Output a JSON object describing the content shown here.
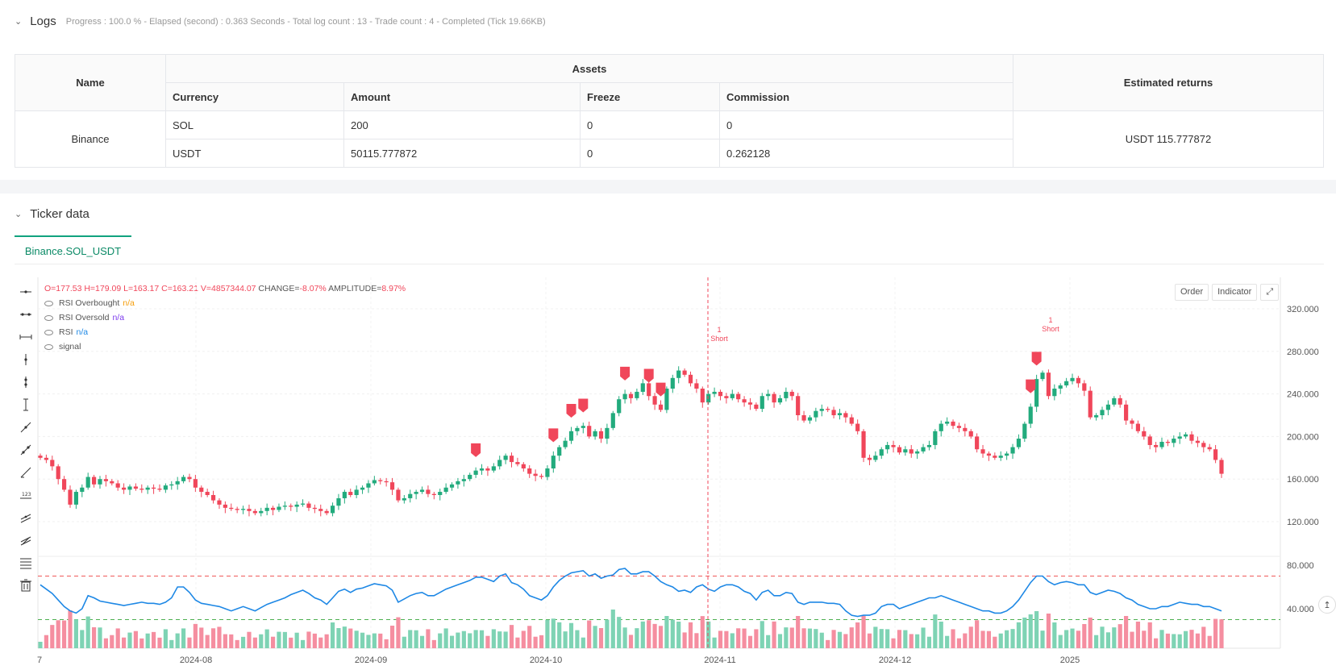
{
  "logs": {
    "title": "Logs",
    "meta": "Progress : 100.0 % - Elapsed (second) : 0.363  Seconds - Total log count : 13 - Trade count : 4 - Completed (Tick 19.66KB)"
  },
  "assets_table": {
    "name_header": "Name",
    "assets_header": "Assets",
    "returns_header": "Estimated returns",
    "columns": [
      "Currency",
      "Amount",
      "Freeze",
      "Commission"
    ],
    "exchange": "Binance",
    "rows": [
      {
        "currency": "SOL",
        "amount": "200",
        "freeze": "0",
        "commission": "0"
      },
      {
        "currency": "USDT",
        "amount": "50115.777872",
        "freeze": "0",
        "commission": "0.262128"
      }
    ],
    "estimated_returns": "USDT 115.777872"
  },
  "ticker": {
    "title": "Ticker data",
    "tab": "Binance.SOL_USDT",
    "buttons": {
      "order": "Order",
      "indicator": "Indicator"
    }
  },
  "ohlc": {
    "o": "O=177.53",
    "h": "H=179.09",
    "l": "L=163.17",
    "c": "C=163.21",
    "v": "V=4857344.07",
    "change_label": "CHANGE=",
    "change": "-8.07%",
    "amp_label": "AMPLITUDE=",
    "amp": "8.97%"
  },
  "legend": [
    {
      "name": "RSI Overbought",
      "value": "n/a",
      "color": "#f59e0b"
    },
    {
      "name": "RSI Oversold",
      "value": "n/a",
      "color": "#7c3aed"
    },
    {
      "name": "RSI",
      "value": "n/a",
      "color": "#1e88e5"
    },
    {
      "name": "signal",
      "value": "",
      "color": "#555555"
    }
  ],
  "chart_data": {
    "type": "candlestick",
    "price_axis_labels": [
      "320.000",
      "280.000",
      "240.000",
      "200.000",
      "160.000",
      "120.000"
    ],
    "price_axis_values": [
      320,
      280,
      240,
      200,
      160,
      120
    ],
    "rsi_axis_labels": [
      "80.000",
      "40.000"
    ],
    "rsi_axis_values": [
      80,
      40
    ],
    "x_labels": [
      "7",
      "2024-08",
      "2024-09",
      "2024-10",
      "2024-11",
      "2024-12",
      "2025"
    ],
    "close": [
      180,
      178,
      172,
      160,
      150,
      136,
      148,
      152,
      162,
      155,
      160,
      158,
      156,
      152,
      150,
      153,
      151,
      150,
      152,
      151,
      150,
      154,
      155,
      158,
      162,
      160,
      152,
      148,
      145,
      140,
      136,
      133,
      132,
      131,
      132,
      130,
      128,
      130,
      133,
      131,
      134,
      135,
      134,
      136,
      137,
      133,
      132,
      130,
      128,
      135,
      142,
      148,
      145,
      150,
      152,
      156,
      159,
      158,
      157,
      150,
      140,
      142,
      146,
      148,
      150,
      146,
      145,
      148,
      152,
      155,
      158,
      160,
      164,
      168,
      170,
      168,
      172,
      178,
      182,
      176,
      174,
      170,
      165,
      163,
      162,
      170,
      182,
      190,
      196,
      205,
      208,
      210,
      200,
      205,
      198,
      208,
      222,
      235,
      240,
      236,
      242,
      250,
      238,
      230,
      225,
      245,
      255,
      262,
      258,
      250,
      245,
      232,
      240,
      242,
      238,
      236,
      240,
      235,
      232,
      230,
      226,
      238,
      240,
      232,
      236,
      242,
      238,
      220,
      215,
      218,
      224,
      226,
      225,
      220,
      222,
      218,
      212,
      205,
      180,
      178,
      182,
      188,
      192,
      190,
      185,
      188,
      184,
      186,
      190,
      192,
      205,
      212,
      214,
      210,
      208,
      205,
      200,
      188,
      184,
      182,
      180,
      182,
      184,
      190,
      198,
      212,
      228,
      254,
      260,
      238,
      245,
      248,
      252,
      255,
      250,
      243,
      218,
      220,
      225,
      230,
      236,
      230,
      215,
      212,
      205,
      200,
      192,
      190,
      195,
      194,
      198,
      200,
      202,
      196,
      194,
      190,
      188,
      178,
      165
    ],
    "rsi": [
      62,
      58,
      54,
      48,
      42,
      38,
      36,
      40,
      52,
      50,
      47,
      46,
      45,
      44,
      43,
      44,
      45,
      46,
      45,
      45,
      44,
      46,
      50,
      60,
      60,
      55,
      48,
      45,
      44,
      43,
      42,
      40,
      38,
      40,
      42,
      40,
      38,
      41,
      44,
      46,
      48,
      50,
      53,
      55,
      57,
      54,
      50,
      48,
      44,
      50,
      56,
      58,
      55,
      58,
      59,
      61,
      63,
      62,
      61,
      57,
      46,
      49,
      52,
      54,
      55,
      52,
      52,
      55,
      58,
      60,
      62,
      64,
      66,
      69,
      69,
      67,
      65,
      70,
      72,
      64,
      62,
      58,
      52,
      50,
      48,
      52,
      60,
      66,
      70,
      73,
      74,
      75,
      70,
      72,
      68,
      70,
      71,
      76,
      77,
      72,
      72,
      74,
      74,
      70,
      65,
      62,
      60,
      56,
      57,
      55,
      60,
      62,
      58,
      56,
      60,
      62,
      62,
      60,
      56,
      54,
      48,
      55,
      57,
      52,
      52,
      55,
      54,
      46,
      44,
      46,
      46,
      46,
      45,
      45,
      44,
      38,
      34,
      33,
      34,
      34,
      36,
      42,
      44,
      44,
      40,
      42,
      44,
      46,
      48,
      50,
      50,
      52,
      50,
      48,
      46,
      44,
      42,
      40,
      38,
      38,
      36,
      36,
      38,
      42,
      48,
      56,
      64,
      70,
      70,
      65,
      62,
      64,
      65,
      64,
      62,
      62,
      55,
      53,
      55,
      57,
      56,
      54,
      50,
      48,
      44,
      42,
      40,
      40,
      42,
      42,
      44,
      46,
      45,
      44,
      44,
      42,
      42,
      40,
      38
    ],
    "rsi_overbought": 70,
    "rsi_oversold": 30,
    "signals": [
      {
        "label": "1\nShort"
      },
      {
        "label": "1\nShort"
      }
    ]
  },
  "icons": [
    "horizontal-line-icon",
    "ray-icon",
    "extended-line-icon",
    "vertical-line-icon",
    "cross-line-icon",
    "arrow-icon",
    "trend-line-icon",
    "parallel-channel-icon",
    "pitchfork-icon",
    "fib-icon",
    "measure-icon",
    "text-icon",
    "trash-icon"
  ]
}
